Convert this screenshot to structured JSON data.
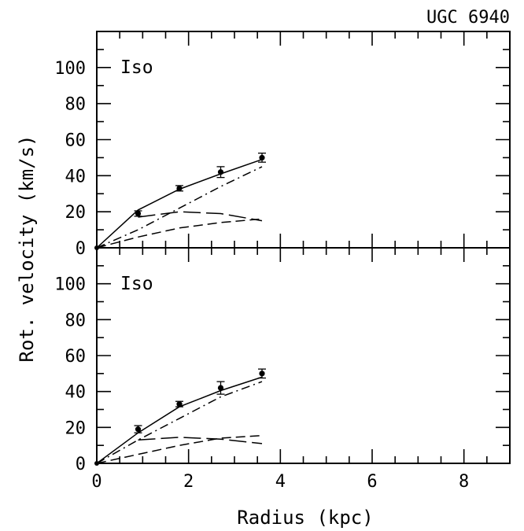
{
  "chart_data": {
    "type": "line",
    "title": "UGC 6940",
    "xlabel": "Radius (kpc)",
    "ylabel": "Rot. velocity (km/s)",
    "xlim": [
      0,
      9
    ],
    "ylim": [
      0,
      120
    ],
    "xticks": [
      0,
      2,
      4,
      6,
      8
    ],
    "yticks": [
      0,
      20,
      40,
      60,
      80,
      100
    ],
    "x_minor_step": 0.5,
    "y_minor_step": 10,
    "tick_labels_x": [
      "0",
      "2",
      "4",
      "6",
      "8"
    ],
    "tick_labels_y": [
      "0",
      "20",
      "40",
      "60",
      "80",
      "100"
    ],
    "panels": [
      {
        "label": "Iso",
        "observed": {
          "x": [
            0.9,
            1.8,
            2.7,
            3.6
          ],
          "y": [
            19,
            33,
            42,
            50
          ],
          "err": [
            1.5,
            1.5,
            3,
            2.5
          ]
        },
        "series": [
          {
            "style": "solid",
            "x": [
              0,
              0.9,
              1.8,
              2.7,
              3.6
            ],
            "y": [
              0,
              21,
              32.5,
              41,
              49
            ]
          },
          {
            "style": "dashdot",
            "x": [
              0,
              0.9,
              1.8,
              2.7,
              3.6
            ],
            "y": [
              0,
              10,
              22,
              34,
              45
            ]
          },
          {
            "style": "longdash",
            "x": [
              0.9,
              1.8,
              2.7,
              3.6
            ],
            "y": [
              17,
              20,
              19,
              15
            ]
          },
          {
            "style": "dash",
            "x": [
              0,
              0.9,
              1.8,
              2.7,
              3.6
            ],
            "y": [
              0,
              6,
              11,
              14,
              16
            ]
          }
        ]
      },
      {
        "label": "Iso",
        "observed": {
          "x": [
            0.9,
            1.8,
            2.7,
            3.6
          ],
          "y": [
            19,
            33,
            42,
            50
          ],
          "err": [
            2,
            1.5,
            3.5,
            2.5
          ]
        },
        "series": [
          {
            "style": "solid",
            "x": [
              0,
              0.9,
              1.8,
              2.7,
              3.6
            ],
            "y": [
              0,
              17,
              31.5,
              40.5,
              48
            ]
          },
          {
            "style": "dashdot",
            "x": [
              0,
              0.9,
              1.8,
              2.7,
              3.6
            ],
            "y": [
              0,
              13,
              25,
              37,
              45.5
            ]
          },
          {
            "style": "longdash",
            "x": [
              0.9,
              1.8,
              2.7,
              3.6
            ],
            "y": [
              13,
              14.5,
              13.5,
              11
            ]
          },
          {
            "style": "dash",
            "x": [
              0,
              0.9,
              1.8,
              2.7,
              3.6
            ],
            "y": [
              0,
              5,
              10,
              14,
              15.5
            ]
          }
        ]
      }
    ]
  }
}
